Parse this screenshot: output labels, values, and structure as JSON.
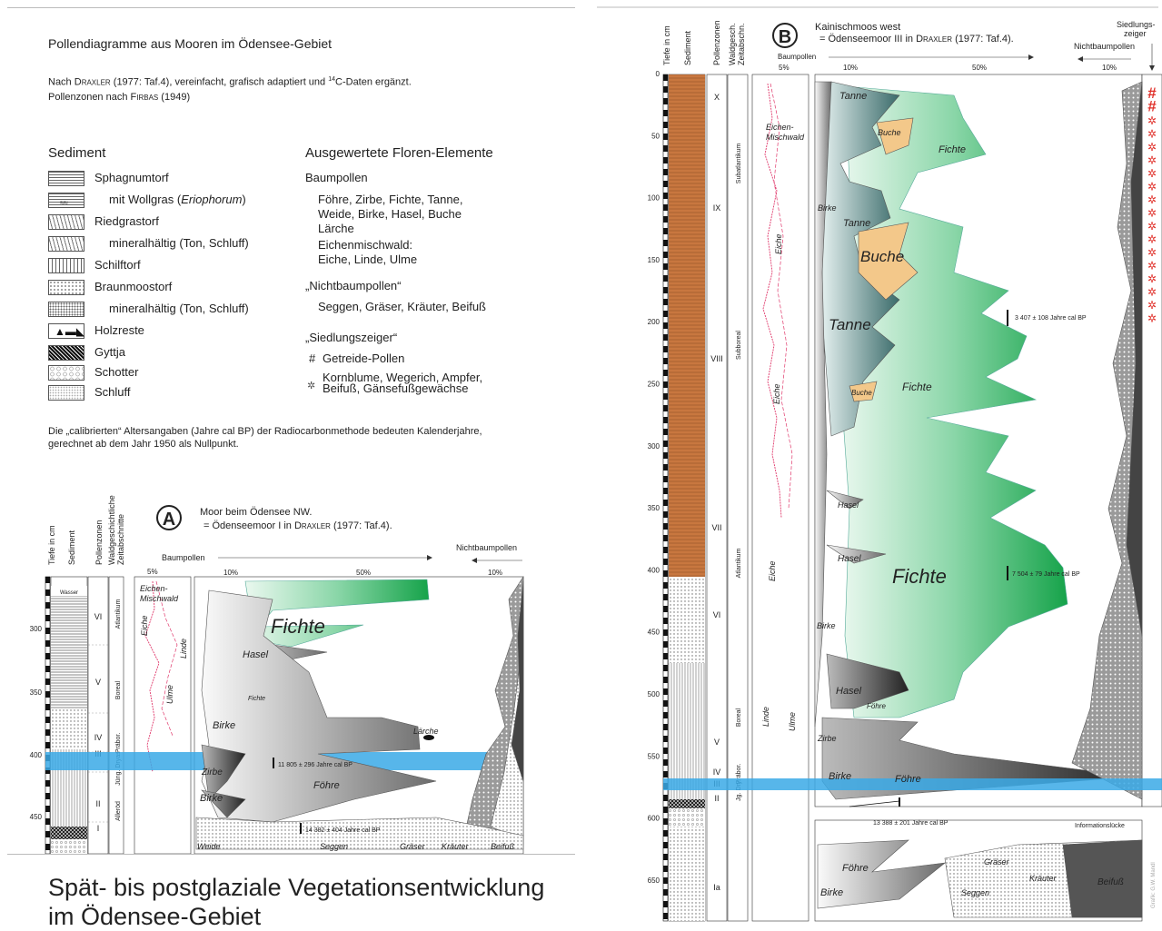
{
  "header": {
    "title": "Pollendiagramme aus Mooren im Ödensee-Gebiet",
    "source_prefix": "Nach ",
    "source_author": "Draxler",
    "source_rest": " (1977: Taf.4), vereinfacht, grafisch adaptiert und ",
    "source_sup": "14",
    "source_end": "C-Daten ergänzt.",
    "zones_prefix": "Pollenzonen nach ",
    "zones_author": "Firbas",
    "zones_year": " (1949)"
  },
  "sediment_legend": {
    "heading": "Sediment",
    "items": [
      {
        "label": "Sphagnumtorf",
        "indent": false,
        "pattern": "sphagnum"
      },
      {
        "label": "mit Wollgras (",
        "label_it": "Eriophorum",
        "label_end": ")",
        "indent": true,
        "pattern": "wollgras"
      },
      {
        "label": "Riedgrastorf",
        "indent": false,
        "pattern": "ried"
      },
      {
        "label": "mineralhältig (Ton, Schluff)",
        "indent": true,
        "pattern": "riedmin"
      },
      {
        "label": "Schilftorf",
        "indent": false,
        "pattern": "schilf"
      },
      {
        "label": "Braunmoostorf",
        "indent": false,
        "pattern": "braun"
      },
      {
        "label": "mineralhältig (Ton, Schluff)",
        "indent": true,
        "pattern": "braunmin"
      },
      {
        "label": "Holzreste",
        "indent": false,
        "pattern": "holz"
      },
      {
        "label": "Gyttja",
        "indent": false,
        "pattern": "gyttja"
      },
      {
        "label": "Schotter",
        "indent": false,
        "pattern": "schotter"
      },
      {
        "label": "Schluff",
        "indent": false,
        "pattern": "schluff"
      }
    ]
  },
  "flora_legend": {
    "heading": "Ausgewertete Floren-Elemente",
    "baum_heading": "Baumpollen",
    "baum_line1": "Föhre, Zirbe, Fichte, Tanne,",
    "baum_line2": "Weide, Birke, Hasel, Buche",
    "baum_line3": "Lärche",
    "baum_line4": "Eichenmischwald:",
    "baum_line5": "Eiche, Linde, Ulme",
    "nbp_heading": "„Nichtbaumpollen“",
    "nbp_line": "Seggen, Gräser, Kräuter, Beifuß",
    "sz_heading": "„Siedlungszeiger“",
    "getreide_symbol": "#",
    "getreide_label": "Getreide-Pollen",
    "korn_symbol": "✲",
    "korn_line1": "Kornblume, Wegerich, Ampfer,",
    "korn_line2": "Beifuß, Gänsefußgewächse"
  },
  "calib_note": {
    "line1": "Die „calibrierten“ Altersangaben (Jahre cal BP) der Radiocarbonmethode bedeuten Kalenderjahre,",
    "line2": "gerechnet ab dem Jahr 1950 als Nullpunkt."
  },
  "footer_title": {
    "line1": "Spät- bis postglaziale Vegetationsentwicklung",
    "line2": "im Ödensee-Gebiet"
  },
  "diagram_a": {
    "badge": "A",
    "site": "Moor beim Ödensee NW.",
    "alias_prefix": "= Ödenseemoor I  in ",
    "alias_author": "Draxler",
    "alias_ref": " (1977: Taf.4).",
    "col_depth": "Tiefe in cm",
    "col_sediment": "Sediment",
    "col_zones": "Pollenzonen",
    "col_periods": "Waldgeschichtliche Zeitabschnitte",
    "baumpollen": "Baumpollen",
    "nichtbaumpollen": "Nichtbaumpollen",
    "pct_5": "5%",
    "pct_10": "10%",
    "pct_50": "50%",
    "pct_10b": "10%",
    "depth_ticks": [
      "300",
      "350",
      "400",
      "450"
    ],
    "zones": [
      "VI",
      "V",
      "IV",
      "III",
      "II",
      "I"
    ],
    "periods": [
      "Atlantikum",
      "Boreal",
      "Präbor.",
      "Jüng. Dryas",
      "Alleröd"
    ],
    "wasser": "Wasser",
    "taxa": {
      "eichen_mischwald": "Eichen-\nMischwald",
      "eiche": "Eiche",
      "linde": "Linde",
      "ulme": "Ulme",
      "fichte_big": "Fichte",
      "hasel": "Hasel",
      "fichte_small": "Fichte",
      "birke1": "Birke",
      "laerche": "Lärche",
      "zirbe": "Zirbe",
      "foehre": "Föhre",
      "birke2": "Birke",
      "weide": "Weide",
      "seggen": "Seggen",
      "graeser": "Gräser",
      "kraeuter": "Kräuter",
      "beifuss": "Beifuß"
    },
    "dates": [
      "11 805 ± 296 Jahre cal BP",
      "14 382 ± 404 Jahre cal BP"
    ]
  },
  "diagram_b": {
    "badge": "B",
    "site": "Kainischmoos west",
    "alias_prefix": "= Ödenseemoor III in ",
    "alias_author": "Draxler",
    "alias_ref": " (1977: Taf.4).",
    "col_depth": "Tiefe in cm",
    "col_sediment": "Sediment",
    "col_zones": "Pollenzonen",
    "col_periods": "Waldgesch. Zeitabschn.",
    "baumpollen": "Baumpollen",
    "pct_5": "5%",
    "pct_10": "10%",
    "pct_50": "50%",
    "pct_10b": "10%",
    "siedlungs": "Siedlungs-",
    "zeiger": "zeiger",
    "nichtbaumpollen": "Nichtbaumpollen",
    "depth_ticks": [
      "0",
      "50",
      "100",
      "150",
      "200",
      "250",
      "300",
      "350",
      "400",
      "450",
      "500",
      "550",
      "600",
      "650"
    ],
    "zones": [
      "X",
      "IX",
      "VIII",
      "VII",
      "VI",
      "V",
      "IV",
      "III",
      "II",
      "Ia"
    ],
    "periods": [
      "Subatlantikum",
      "Subboreal",
      "Atlantikum",
      "Boreal",
      "Präbor.",
      "Jg. Dry."
    ],
    "taxa": {
      "eichen_mischwald": "Eichen-\nMischwald",
      "eiche1": "Eiche",
      "eiche2": "Eiche",
      "eiche3": "Eiche",
      "linde": "Linde",
      "ulme": "Ulme",
      "tanne1": "Tanne",
      "buche1": "Buche",
      "fichte1": "Fichte",
      "birke1": "Birke",
      "tanne2": "Tanne",
      "buche2": "Buche",
      "tanne3": "Tanne",
      "buche3": "Buche",
      "fichte2": "Fichte",
      "hasel1": "Hasel",
      "hasel2": "Hasel",
      "fichte3": "Fichte",
      "birke2": "Birke",
      "hasel3": "Hasel",
      "foehre1": "Föhre",
      "zirbe": "Zirbe",
      "birke3": "Birke",
      "foehre2": "Föhre",
      "foehre3": "Föhre",
      "birke4": "Birke",
      "graeser": "Gräser",
      "kraeuter": "Kräuter",
      "seggen": "Seggen",
      "beifuss": "Beifuß"
    },
    "dates": [
      "3 407 ± 108  Jahre cal BP",
      "7 504 ± 79 Jahre cal BP",
      "13 388 ± 201 Jahre cal BP"
    ],
    "info_gap": "Informationslücke",
    "credit": "Grafik: G.W. Mandl",
    "siedlung_marks": [
      "#",
      "#",
      "✲",
      "✲",
      "✲",
      "✲",
      "✲",
      "✲",
      "✲",
      "✲",
      "✲",
      "✲",
      "✲",
      "✲",
      "✲",
      "✲",
      "✲",
      "✲"
    ]
  },
  "colors": {
    "fichte": "#2fb36b",
    "fichte_light": "#dff5e8",
    "tanne": "#3a6b6a",
    "buche": "#f3c88a",
    "orange_core": "#c8773f",
    "dryas_band": "#3aa9e6",
    "eiche": "#e0386b",
    "dark_grey": "#444444"
  }
}
